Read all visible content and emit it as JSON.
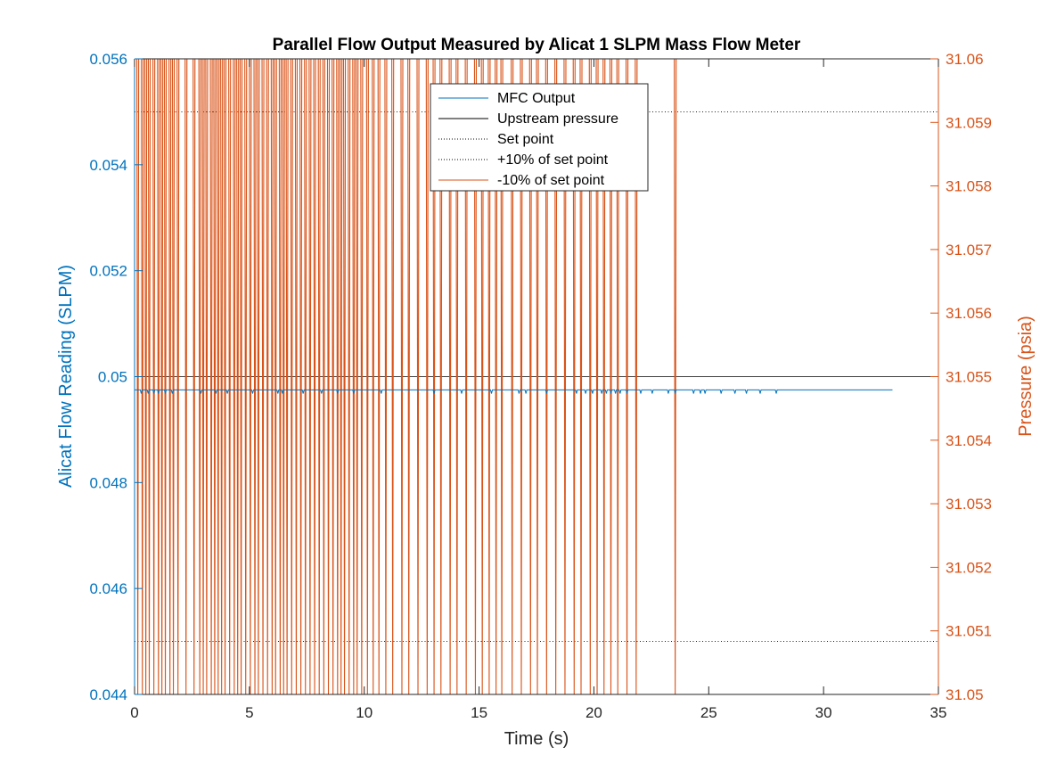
{
  "chart_data": {
    "type": "line",
    "title": "Parallel Flow Output Measured by Alicat 1 SLPM Mass Flow Meter",
    "xlabel": "Time (s)",
    "ylabel_left": "Alicat Flow Reading (SLPM)",
    "ylabel_right": "Pressure (psia)",
    "xlim": [
      0,
      35
    ],
    "ylim_left": [
      0.044,
      0.056
    ],
    "ylim_right": [
      31.05,
      31.06
    ],
    "xticks": [
      "0",
      "5",
      "10",
      "15",
      "20",
      "25",
      "30",
      "35"
    ],
    "yticks_left": [
      "0.044",
      "0.046",
      "0.048",
      "0.05",
      "0.052",
      "0.054",
      "0.056"
    ],
    "yticks_right": [
      "31.05",
      "31.051",
      "31.052",
      "31.053",
      "31.054",
      "31.055",
      "31.056",
      "31.057",
      "31.058",
      "31.059",
      "31.06"
    ],
    "grid": false,
    "legend_position": "top-center",
    "colors": {
      "left_axis": "#0072BD",
      "right_axis": "#D95319",
      "mfc_output": "#0072BD",
      "upstream_pressure": "#D95319",
      "reference": "#000000"
    },
    "series": [
      {
        "name": "MFC Output",
        "axis": "left",
        "baseline": 0.04975,
        "dip_value": 0.04968,
        "x_end": 33,
        "dip_times": [
          0.25,
          0.55,
          0.8,
          1.0,
          1.3,
          1.6,
          2.85,
          3.5,
          4.0,
          5.1,
          6.2,
          6.4,
          7.3,
          8.1,
          8.8,
          9.5,
          10.7,
          13.0,
          14.2,
          15.5,
          16.7,
          17.0,
          17.9,
          19.2,
          19.6,
          19.9,
          20.3,
          20.5,
          20.7,
          20.9,
          21.1,
          21.4,
          22.0,
          22.5,
          23.2,
          23.5,
          24.3,
          24.6,
          24.8,
          25.5,
          26.1,
          26.6,
          27.2,
          27.9
        ]
      },
      {
        "name": "Upstream pressure",
        "axis": "right",
        "baseline": 31.06,
        "low_value": 31.05,
        "x_end": 35,
        "low_times": [
          0.1,
          0.3,
          0.45,
          0.6,
          0.8,
          1.0,
          1.15,
          1.3,
          1.5,
          1.65,
          1.85,
          2.2,
          2.55,
          2.8,
          2.95,
          3.1,
          3.3,
          3.45,
          3.6,
          3.75,
          3.9,
          4.1,
          4.3,
          4.45,
          4.6,
          4.8,
          5.0,
          5.2,
          5.35,
          5.55,
          5.75,
          5.95,
          6.1,
          6.3,
          6.45,
          6.6,
          6.8,
          7.0,
          7.2,
          7.4,
          7.6,
          7.8,
          8.0,
          8.2,
          8.4,
          8.6,
          8.8,
          8.95,
          9.1,
          9.3,
          9.5,
          9.65,
          9.85,
          10.1,
          10.35,
          10.6,
          10.9,
          11.2,
          11.6,
          11.9,
          12.3,
          12.7,
          13.0,
          13.3,
          13.7,
          14.0,
          14.4,
          14.8,
          15.1,
          15.4,
          15.7,
          15.95,
          16.4,
          16.8,
          17.2,
          17.5,
          17.9,
          18.3,
          18.7,
          19.1,
          19.4,
          19.8,
          20.1,
          20.4,
          20.7,
          21.0,
          21.4,
          21.8,
          23.5
        ]
      },
      {
        "name": "Set point",
        "axis": "left",
        "value": 0.05
      },
      {
        "name": "+10% of set point",
        "axis": "left",
        "value": 0.055
      },
      {
        "name": "-10% of set point",
        "axis": "left",
        "value": 0.045
      }
    ]
  }
}
